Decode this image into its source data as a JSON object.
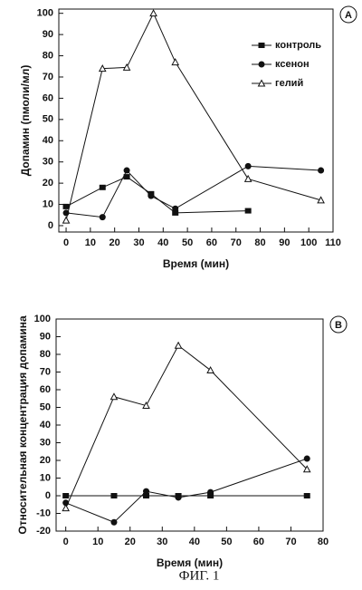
{
  "caption": "ФИГ. 1",
  "chart_data": [
    {
      "type": "line",
      "annotation": "A",
      "x_label": "Время (мин)",
      "y_label": "Допамин (пмоли/мл)",
      "xlim": [
        -3,
        110
      ],
      "xticks": [
        0,
        10,
        20,
        30,
        40,
        50,
        60,
        70,
        80,
        90,
        100,
        110
      ],
      "ylim": [
        -3,
        102
      ],
      "yticks": [
        0,
        10,
        20,
        30,
        40,
        50,
        60,
        70,
        80,
        90,
        100
      ],
      "legend": "upper right",
      "series": [
        {
          "name": "контроль",
          "marker": "square",
          "color": "#111",
          "x": [
            0,
            15,
            25,
            35,
            45,
            75
          ],
          "values": [
            9,
            18,
            23,
            15,
            6,
            7
          ]
        },
        {
          "name": "ксенон",
          "marker": "circle",
          "color": "#111",
          "x": [
            0,
            15,
            25,
            35,
            45,
            75,
            105
          ],
          "values": [
            6,
            4,
            26,
            14,
            8,
            28,
            26
          ]
        },
        {
          "name": "гелий",
          "marker": "triangle",
          "color": "#111",
          "x": [
            0,
            15,
            25,
            36,
            45,
            75,
            105
          ],
          "values": [
            2.5,
            74,
            74.5,
            100,
            77,
            22,
            12
          ]
        }
      ]
    },
    {
      "type": "line",
      "annotation": "B",
      "x_label": "Время (мин)",
      "y_label": "Относительная концентрация допамина",
      "xlim": [
        -3,
        80
      ],
      "xticks": [
        0,
        10,
        20,
        30,
        40,
        50,
        60,
        70,
        80
      ],
      "ylim": [
        -20,
        100
      ],
      "yticks": [
        -20,
        -10,
        0,
        10,
        20,
        30,
        40,
        50,
        60,
        70,
        80,
        90,
        100
      ],
      "series": [
        {
          "marker": "square",
          "color": "#111",
          "x": [
            0,
            15,
            25,
            35,
            45,
            75
          ],
          "values": [
            0,
            0,
            0,
            0,
            0,
            0
          ]
        },
        {
          "marker": "circle",
          "color": "#111",
          "x": [
            0,
            15,
            25,
            35,
            45,
            75
          ],
          "values": [
            -4,
            -15,
            2.5,
            -1,
            2,
            21
          ]
        },
        {
          "marker": "triangle",
          "color": "#111",
          "x": [
            0,
            15,
            25,
            35,
            45,
            75
          ],
          "values": [
            -7,
            56,
            51,
            85,
            71,
            15
          ]
        }
      ]
    }
  ]
}
